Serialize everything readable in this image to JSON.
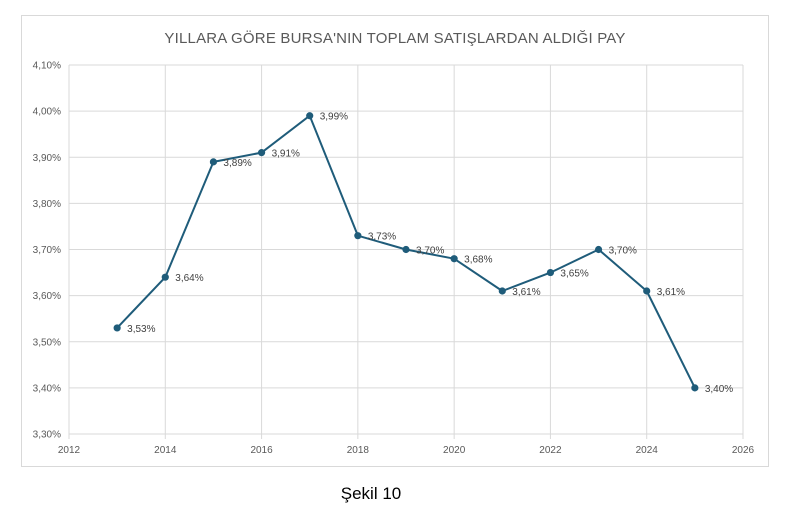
{
  "caption": "Şekil 10",
  "colors": {
    "series": "#1f5c7a",
    "grid": "#d9d9d9",
    "text": "#595959"
  },
  "chart_data": {
    "type": "scatter",
    "title": "YILLARA GÖRE BURSA'NIN TOPLAM SATIŞLARDAN ALDIĞI PAY",
    "xlabel": "",
    "ylabel": "",
    "xlim": [
      2012,
      2026
    ],
    "ylim": [
      3.3,
      4.1
    ],
    "x_ticks": [
      "2012",
      "2014",
      "2016",
      "2018",
      "2020",
      "2022",
      "2024",
      "2026"
    ],
    "y_ticks": [
      "3,30%",
      "3,40%",
      "3,50%",
      "3,60%",
      "3,70%",
      "3,80%",
      "3,90%",
      "4,00%",
      "4,10%"
    ],
    "grid": true,
    "lines_connect_points": true,
    "series": [
      {
        "x": [
          2013,
          2014,
          2015,
          2016,
          2017,
          2018,
          2019,
          2020,
          2021,
          2022,
          2023,
          2024,
          2025
        ],
        "y": [
          3.53,
          3.64,
          3.89,
          3.91,
          3.99,
          3.73,
          3.7,
          3.68,
          3.61,
          3.65,
          3.7,
          3.61,
          3.4
        ],
        "labels": [
          "3,53%",
          "3,64%",
          "3,89%",
          "3,91%",
          "3,99%",
          "3,73%",
          "3,70%",
          "3,68%",
          "3,61%",
          "3,65%",
          "3,70%",
          "3,61%",
          "3,40%"
        ]
      }
    ]
  }
}
